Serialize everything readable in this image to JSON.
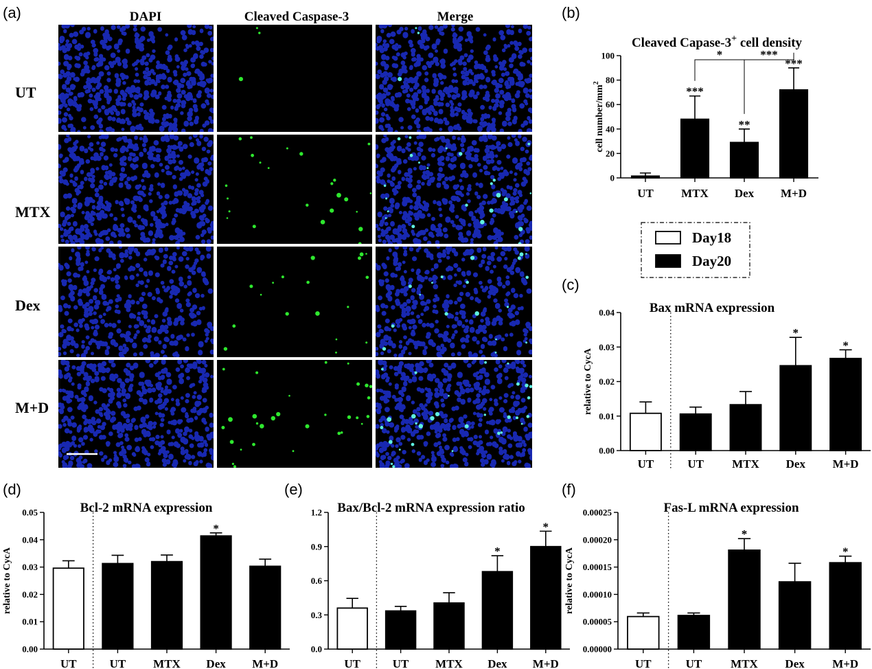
{
  "micrograph": {
    "panel_letter": "(a)",
    "columns": [
      "DAPI",
      "Cleaved Caspase-3",
      "Merge"
    ],
    "rows": [
      "UT",
      "MTX",
      "Dex",
      "M+D"
    ],
    "green_cell_counts": [
      3,
      24,
      18,
      30
    ],
    "colors": {
      "nuclei": "#1c2fd0",
      "caspase": "#2ee82e",
      "background": "#000000"
    }
  },
  "legend": {
    "items": [
      {
        "label": "Day18",
        "fill": "#ffffff"
      },
      {
        "label": "Day20",
        "fill": "#000000"
      }
    ]
  },
  "chart_data": [
    {
      "panel": "(b)",
      "type": "bar",
      "title": "Cleaved Capase-3",
      "title_sup": "+",
      "title_rest": " cell density",
      "ylabel": "cell number/mm",
      "ylabel_sup": "2",
      "ylim": [
        0,
        100
      ],
      "yticks": [
        "0",
        "20",
        "40",
        "60",
        "80",
        "100"
      ],
      "ytick_values": [
        0,
        20,
        40,
        60,
        80,
        100
      ],
      "categories": [
        "UT",
        "MTX",
        "Dex",
        "M+D"
      ],
      "values": [
        1.5,
        48,
        29,
        72
      ],
      "errors": [
        2.5,
        19,
        11,
        18
      ],
      "fills": [
        "#000000",
        "#000000",
        "#000000",
        "#000000"
      ],
      "stars": [
        "",
        "***",
        "**",
        "***"
      ],
      "brackets": [
        {
          "from": 1,
          "to": 2,
          "label": "*"
        },
        {
          "from": 2,
          "to": 3,
          "label": "***"
        }
      ],
      "divider_after": null
    },
    {
      "panel": "(c)",
      "type": "bar",
      "title": "Bax mRNA expression",
      "ylabel": "relative to CycA",
      "ylim": [
        0,
        0.04
      ],
      "yticks": [
        "0.00",
        "0.01",
        "0.02",
        "0.03",
        "0.04"
      ],
      "ytick_values": [
        0,
        0.01,
        0.02,
        0.03,
        0.04
      ],
      "categories": [
        "UT",
        "UT",
        "MTX",
        "Dex",
        "M+D"
      ],
      "values": [
        0.0108,
        0.0106,
        0.0133,
        0.0246,
        0.0267
      ],
      "errors": [
        0.0033,
        0.002,
        0.0038,
        0.0082,
        0.0025
      ],
      "fills": [
        "#ffffff",
        "#000000",
        "#000000",
        "#000000",
        "#000000"
      ],
      "stars": [
        "",
        "",
        "",
        "*",
        "*"
      ],
      "divider_after": 0
    },
    {
      "panel": "(d)",
      "type": "bar",
      "title": "Bcl-2 mRNA expression",
      "ylabel": "relative to CycA",
      "ylim": [
        0,
        0.05
      ],
      "yticks": [
        "0.00",
        "0.01",
        "0.02",
        "0.03",
        "0.04",
        "0.05"
      ],
      "ytick_values": [
        0,
        0.01,
        0.02,
        0.03,
        0.04,
        0.05
      ],
      "categories": [
        "UT",
        "UT",
        "MTX",
        "Dex",
        "M+D"
      ],
      "values": [
        0.0296,
        0.0313,
        0.032,
        0.0414,
        0.0303
      ],
      "errors": [
        0.0027,
        0.003,
        0.0024,
        0.0011,
        0.0026
      ],
      "fills": [
        "#ffffff",
        "#000000",
        "#000000",
        "#000000",
        "#000000"
      ],
      "stars": [
        "",
        "",
        "",
        "*",
        ""
      ],
      "divider_after": 0
    },
    {
      "panel": "(e)",
      "type": "bar",
      "title": "Bax/Bcl-2 mRNA expression ratio",
      "ylabel": "",
      "ylim": [
        0,
        1.2
      ],
      "yticks": [
        "0.0",
        "0.3",
        "0.6",
        "0.9",
        "1.2"
      ],
      "ytick_values": [
        0,
        0.3,
        0.6,
        0.9,
        1.2
      ],
      "categories": [
        "UT",
        "UT",
        "MTX",
        "Dex",
        "M+D"
      ],
      "values": [
        0.36,
        0.335,
        0.405,
        0.68,
        0.9
      ],
      "errors": [
        0.085,
        0.04,
        0.09,
        0.14,
        0.135
      ],
      "fills": [
        "#ffffff",
        "#000000",
        "#000000",
        "#000000",
        "#000000"
      ],
      "stars": [
        "",
        "",
        "",
        "*",
        "*"
      ],
      "divider_after": 0
    },
    {
      "panel": "(f)",
      "type": "bar",
      "title": "Fas-L mRNA expression",
      "ylabel": "relative to CycA",
      "ylim": [
        0,
        0.00025
      ],
      "yticks": [
        "0.00000",
        "0.00005",
        "0.00010",
        "0.00015",
        "0.00020",
        "0.00025"
      ],
      "ytick_values": [
        0,
        5e-05,
        0.0001,
        0.00015,
        0.0002,
        0.00025
      ],
      "categories": [
        "UT",
        "UT",
        "MTX",
        "Dex",
        "M+D"
      ],
      "values": [
        5.95e-05,
        6.15e-05,
        0.000181,
        0.000123,
        0.000158
      ],
      "errors": [
        6.5e-06,
        4.5e-06,
        2.1e-05,
        3.4e-05,
        1.2e-05
      ],
      "fills": [
        "#ffffff",
        "#000000",
        "#000000",
        "#000000",
        "#000000"
      ],
      "stars": [
        "",
        "",
        "*",
        "",
        "*"
      ],
      "divider_after": 0
    }
  ]
}
